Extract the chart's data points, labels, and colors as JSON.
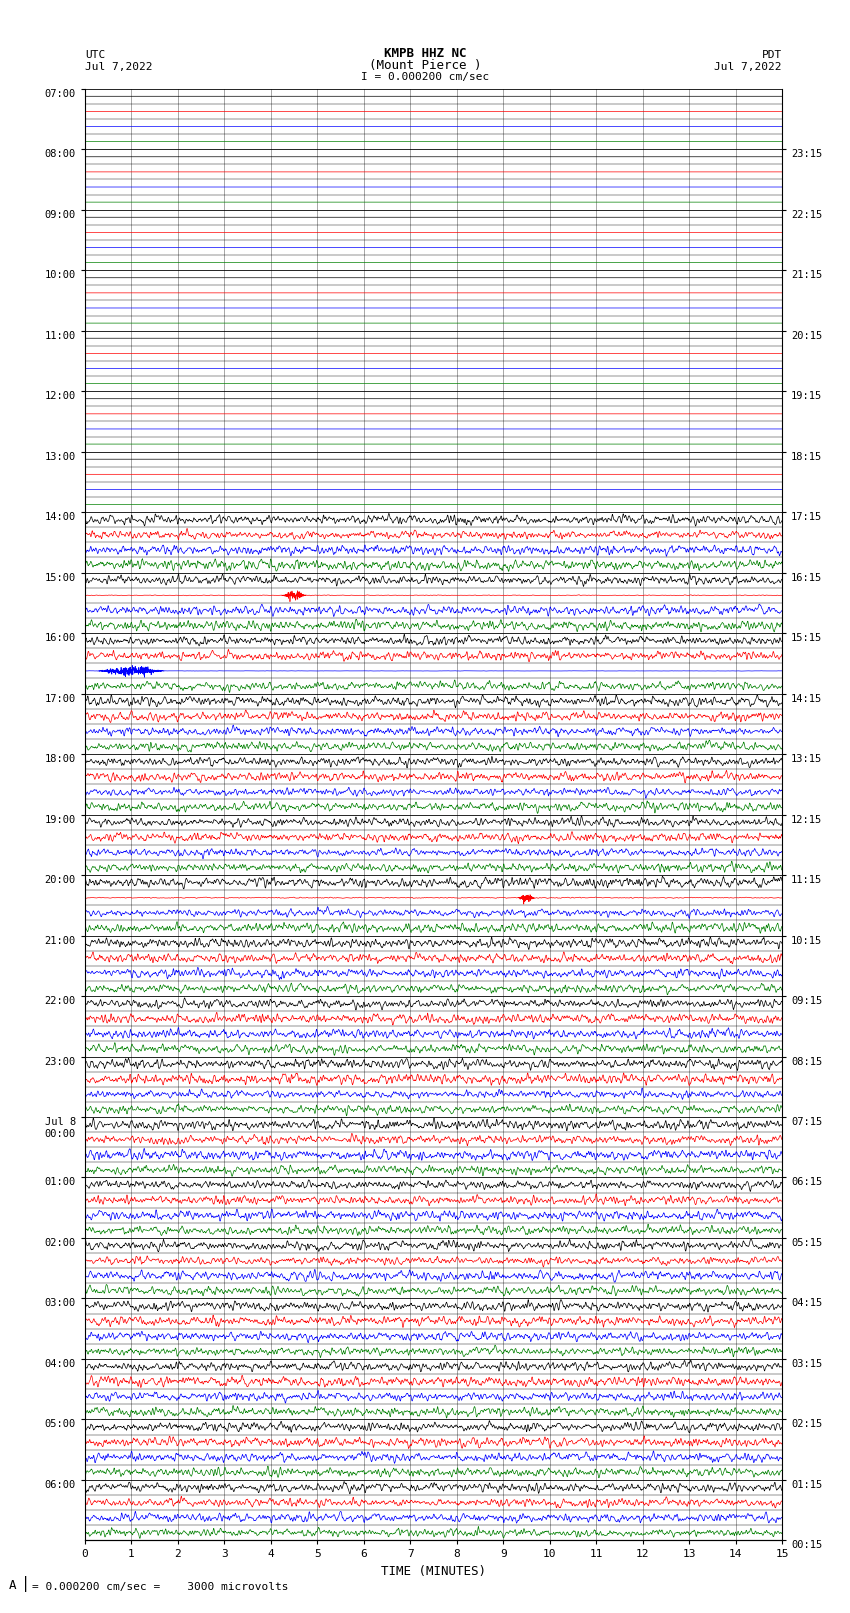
{
  "title_line1": "KMPB HHZ NC",
  "title_line2": "(Mount Pierce )",
  "title_line3": "I = 0.000200 cm/sec",
  "left_label": "UTC",
  "left_date": "Jul 7,2022",
  "right_label": "PDT",
  "right_date": "Jul 7,2022",
  "xlabel": "TIME (MINUTES)",
  "bottom_note": "= 0.000200 cm/sec =    3000 microvolts",
  "utc_labels": [
    "07:00",
    "08:00",
    "09:00",
    "10:00",
    "11:00",
    "12:00",
    "13:00",
    "14:00",
    "15:00",
    "16:00",
    "17:00",
    "18:00",
    "19:00",
    "20:00",
    "21:00",
    "22:00",
    "23:00",
    "Jul 8\n00:00",
    "01:00",
    "02:00",
    "03:00",
    "04:00",
    "05:00",
    "06:00"
  ],
  "pdt_labels": [
    "00:15",
    "01:15",
    "02:15",
    "03:15",
    "04:15",
    "05:15",
    "06:15",
    "07:15",
    "08:15",
    "09:15",
    "10:15",
    "11:15",
    "12:15",
    "13:15",
    "14:15",
    "15:15",
    "16:15",
    "17:15",
    "18:15",
    "19:15",
    "20:15",
    "21:15",
    "22:15",
    "23:15"
  ],
  "n_rows": 24,
  "traces_per_row": 4,
  "x_min": 0,
  "x_max": 15,
  "row_colors": [
    "black",
    "red",
    "blue",
    "green"
  ],
  "quiet_rows": 7,
  "fig_width": 8.5,
  "fig_height": 16.13,
  "bg_color": "white",
  "seed": 42,
  "grid_color": "#666666",
  "grid_lw": 0.4,
  "trace_lw": 0.5
}
